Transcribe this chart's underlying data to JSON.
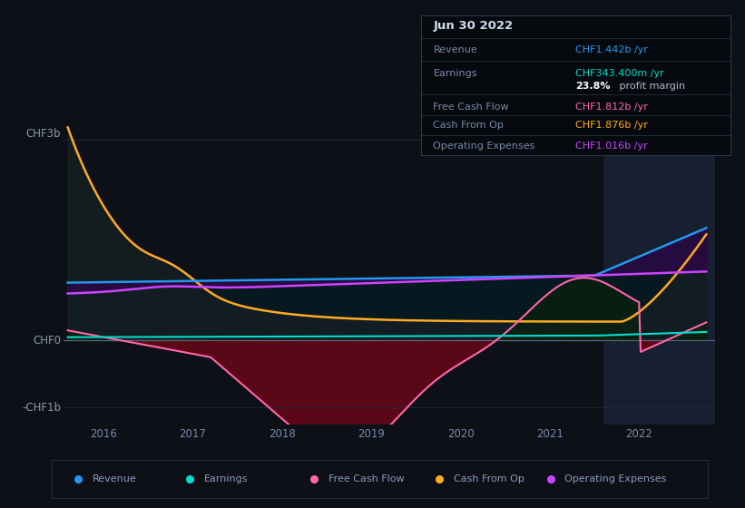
{
  "bg_color": "#0d1117",
  "ylabel_top": "CHF3b",
  "ylabel_zero": "CHF0",
  "ylabel_neg": "-CHF1b",
  "xlim_min": 2015.55,
  "xlim_max": 2022.85,
  "ylim_min": -1.25,
  "ylim_max": 3.3,
  "color_revenue": "#2299ee",
  "color_earnings": "#00ddcc",
  "color_fcf": "#ff66aa",
  "color_cashop": "#ffaa22",
  "color_opex": "#cc44ff",
  "color_fcf_fill": "#5a0818",
  "color_revenue_fill_dark": "#061820",
  "color_opex_fill": "#2a0a44",
  "highlight_start": 2021.6,
  "highlight_end": 2022.85,
  "highlight_color": "#162030",
  "tooltip_bg": "#060a0e",
  "tooltip_border": "#2a3a4a",
  "years_ticks": [
    2016,
    2017,
    2018,
    2019,
    2020,
    2021,
    2022
  ],
  "grid_color": "#1e2d3d",
  "zero_line_color": "#556677",
  "info_title": "Jun 30 2022",
  "info_revenue_label": "Revenue",
  "info_revenue_val": "CHF1.442b /yr",
  "info_earnings_label": "Earnings",
  "info_earnings_val": "CHF343.400m /yr",
  "info_margin": "23.8% profit margin",
  "info_fcf_label": "Free Cash Flow",
  "info_fcf_val": "CHF1.812b /yr",
  "info_cashop_label": "Cash From Op",
  "info_cashop_val": "CHF1.876b /yr",
  "info_opex_label": "Operating Expenses",
  "info_opex_val": "CHF1.016b /yr",
  "legend_items": [
    "Revenue",
    "Earnings",
    "Free Cash Flow",
    "Cash From Op",
    "Operating Expenses"
  ],
  "legend_colors": [
    "#2299ee",
    "#00ddcc",
    "#ff66aa",
    "#ffaa22",
    "#cc44ff"
  ]
}
